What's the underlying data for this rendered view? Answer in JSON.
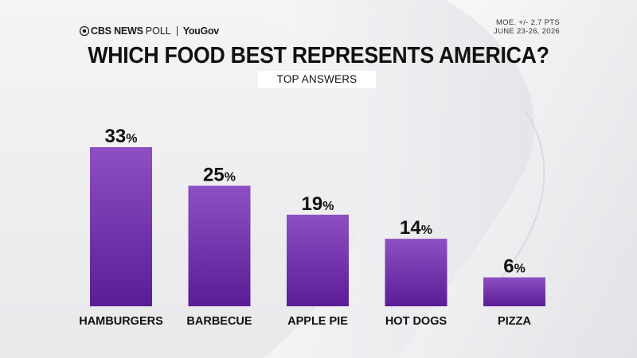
{
  "header": {
    "network": "CBS NEWS",
    "poll_word": "POLL",
    "partner": "YouGov",
    "moe": "MOE. +/- 2.7 PTS",
    "dates": "JUNE 23-26, 2026"
  },
  "colors": {
    "bar_top": "#8e4fc3",
    "bar_bottom": "#5b1d96",
    "text": "#111111"
  },
  "chart_data": {
    "type": "bar",
    "title": "WHICH FOOD BEST REPRESENTS AMERICA?",
    "subtitle": "TOP ANSWERS",
    "categories": [
      "HAMBURGERS",
      "BARBECUE",
      "APPLE PIE",
      "HOT DOGS",
      "PIZZA"
    ],
    "values": [
      33,
      25,
      19,
      14,
      6
    ],
    "unit": "%",
    "ylim": [
      0,
      33
    ],
    "grid": false,
    "legend": "none"
  }
}
